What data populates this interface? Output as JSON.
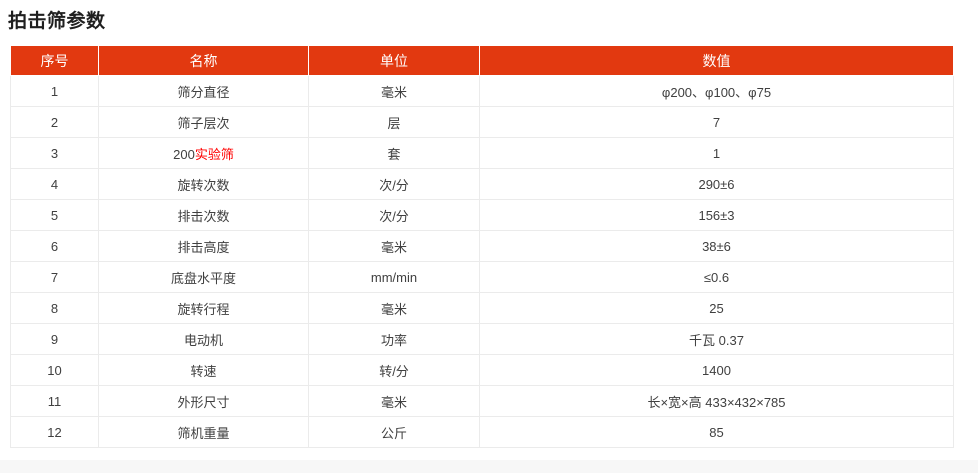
{
  "title": "拍击筛参数",
  "colors": {
    "header_bg": "#E23910",
    "header_text": "#FFFFFF",
    "body_text": "#404040",
    "cell_border": "#EBEBEB",
    "keyword_red": "#FF0000",
    "footer_band": "#F7F7F7"
  },
  "table": {
    "columns": [
      "序号",
      "名称",
      "单位",
      "数值"
    ],
    "rows": [
      {
        "no": "1",
        "name": "筛分直径",
        "unit": "毫米",
        "value": "φ200、φ100、φ75"
      },
      {
        "no": "2",
        "name": "筛子层次",
        "unit": "层",
        "value": "7"
      },
      {
        "no": "3",
        "name": "200实验筛",
        "name_black": "200",
        "name_red": "实验筛",
        "unit": "套",
        "value": "1"
      },
      {
        "no": "4",
        "name": "旋转次数",
        "unit": "次/分",
        "value": "290±6"
      },
      {
        "no": "5",
        "name": "排击次数",
        "unit": "次/分",
        "value": "156±3"
      },
      {
        "no": "6",
        "name": "排击高度",
        "unit": "毫米",
        "value": "38±6"
      },
      {
        "no": "7",
        "name": "底盘水平度",
        "unit": "mm/min",
        "value": "≤0.6"
      },
      {
        "no": "8",
        "name": "旋转行程",
        "unit": "毫米",
        "value": "25"
      },
      {
        "no": "9",
        "name": "电动机",
        "unit": "功率",
        "value": "千瓦 0.37"
      },
      {
        "no": "10",
        "name": "转速",
        "unit": "转/分",
        "value": "1400"
      },
      {
        "no": "11",
        "name": "外形尺寸",
        "unit": "毫米",
        "value": "长×宽×高 433×432×785"
      },
      {
        "no": "12",
        "name": "筛机重量",
        "unit": "公斤",
        "value": "85"
      }
    ]
  }
}
